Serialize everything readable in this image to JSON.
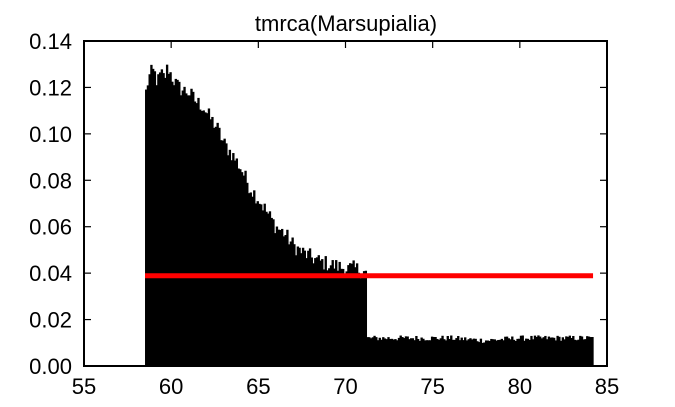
{
  "chart_data": {
    "type": "bar",
    "title": "tmrca(Marsupialia)",
    "xlabel": "",
    "ylabel": "",
    "xlim": [
      55,
      85
    ],
    "ylim": [
      0.0,
      0.14
    ],
    "x_ticks": [
      "55",
      "60",
      "65",
      "70",
      "75",
      "80",
      "85"
    ],
    "y_ticks": [
      "0.00",
      "0.02",
      "0.04",
      "0.06",
      "0.08",
      "0.10",
      "0.12",
      "0.14"
    ],
    "grid": false,
    "legend": "none",
    "histogram": {
      "bin_start": 58.5,
      "bin_end": 84.2,
      "bin_width": 0.1,
      "fill_color": "#000000",
      "value_description": "normalized frequency",
      "envelope_points": [
        [
          58.5,
          0.115
        ],
        [
          58.6,
          0.121
        ],
        [
          58.8,
          0.126
        ],
        [
          59.0,
          0.127
        ],
        [
          59.2,
          0.122
        ],
        [
          59.4,
          0.126
        ],
        [
          59.6,
          0.124
        ],
        [
          59.8,
          0.129
        ],
        [
          60.0,
          0.125
        ],
        [
          60.3,
          0.121
        ],
        [
          60.6,
          0.119
        ],
        [
          61.0,
          0.118
        ],
        [
          61.4,
          0.114
        ],
        [
          61.8,
          0.112
        ],
        [
          62.2,
          0.107
        ],
        [
          62.6,
          0.103
        ],
        [
          63.0,
          0.096
        ],
        [
          63.5,
          0.091
        ],
        [
          64.0,
          0.085
        ],
        [
          64.5,
          0.077
        ],
        [
          65.0,
          0.072
        ],
        [
          65.5,
          0.066
        ],
        [
          66.0,
          0.06
        ],
        [
          66.5,
          0.057
        ],
        [
          67.0,
          0.052
        ],
        [
          67.5,
          0.049
        ],
        [
          68.0,
          0.047
        ],
        [
          68.5,
          0.045
        ],
        [
          69.0,
          0.044
        ],
        [
          69.5,
          0.043
        ],
        [
          70.0,
          0.042
        ],
        [
          70.5,
          0.042
        ],
        [
          71.0,
          0.041
        ],
        [
          71.15,
          0.04
        ],
        [
          71.2,
          0.012
        ],
        [
          72.0,
          0.012
        ],
        [
          74.0,
          0.012
        ],
        [
          76.0,
          0.012
        ],
        [
          78.0,
          0.011
        ],
        [
          80.0,
          0.012
        ],
        [
          82.0,
          0.012
        ],
        [
          84.2,
          0.012
        ]
      ]
    },
    "reference_line": {
      "x_start": 58.5,
      "x_end": 84.2,
      "y": 0.0389,
      "color": "#ff0000"
    }
  }
}
